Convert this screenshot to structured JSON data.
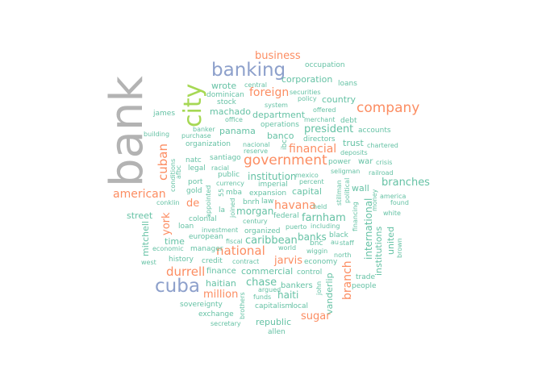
{
  "palette": {
    "teal": "#66c2a5",
    "orange": "#fc8d62",
    "blue": "#8da0cb",
    "green": "#a6d854",
    "gray": "#b3b3b3"
  },
  "words": {
    "bank": "bank",
    "city": "city",
    "banking": "banking",
    "cuba": "cuba",
    "government": "government",
    "company": "company",
    "cuban": "cuban",
    "national": "national",
    "durrell": "durrell",
    "american": "american",
    "business": "business",
    "foreign": "foreign",
    "financial": "financial",
    "president": "president",
    "havana": "havana",
    "million": "million",
    "branch": "branch",
    "sugar": "sugar",
    "chase": "chase",
    "branches": "branches",
    "caribbean": "caribbean",
    "banks": "banks",
    "york": "york",
    "farnham": "farnham",
    "jarvis": "jarvis",
    "international": "international",
    "morgan": "morgan",
    "institution": "institution",
    "haiti": "haiti",
    "corporation": "corporation",
    "street": "street",
    "de": "de",
    "republic": "republic",
    "commercial": "commercial",
    "trust": "trust",
    "capital": "capital",
    "banco": "banco",
    "department": "department",
    "wall": "wall",
    "country": "country",
    "wrote": "wrote",
    "machado": "machado",
    "panama": "panama",
    "time": "time",
    "bankers": "bankers",
    "haitian": "haitian",
    "mitchell": "mitchell",
    "united": "united",
    "institutions": "institutions",
    "vanderlip": "vanderlip",
    "occupation": "occupation",
    "loans": "loans",
    "central": "central",
    "dominican": "dominican",
    "stock": "stock",
    "system": "system",
    "securities": "securities",
    "policy": "policy",
    "offered": "offered",
    "james": "james",
    "office": "office",
    "merchant": "merchant",
    "debt": "debt",
    "operations": "operations",
    "accounts": "accounts",
    "building": "building",
    "banker": "banker",
    "purchase": "purchase",
    "organization": "organization",
    "nacional": "nacional",
    "reserve": "reserve",
    "ibc": "ibc",
    "directors": "directors",
    "chartered": "chartered",
    "deposits": "deposits",
    "santiago": "santiago",
    "power": "power",
    "war": "war",
    "crisis": "crisis",
    "afbc": "afbc",
    "conditions": "conditions",
    "natc": "natc",
    "legal": "legal",
    "racial": "racial",
    "seligman": "seligman",
    "railroad": "railroad",
    "public": "public",
    "mexico": "mexico",
    "port": "port",
    "currency": "currency",
    "imperial": "imperial",
    "percent": "percent",
    "stillman": "stillman",
    "political": "political",
    "money": "money",
    "america": "america",
    "gold": "gold",
    "appointed": "appointed",
    "s5": "55",
    "mba": "mba",
    "expansion": "expansion",
    "conklin": "conklin",
    "joined": "joined",
    "bnrh": "bnrh",
    "law": "law",
    "held": "held",
    "found": "found",
    "la": "la",
    "federal": "federal",
    "financing": "financing",
    "white": "white",
    "colonial": "colonial",
    "century": "century",
    "loan": "loan",
    "puerto": "puerto",
    "including": "including",
    "investment": "investment",
    "organized": "organized",
    "european": "european",
    "black": "black",
    "au": "au",
    "fiscal": "fiscal",
    "staff": "staff",
    "economic": "economic",
    "manager": "manager",
    "world": "world",
    "bnc": "bnc",
    "wiggin": "wiggin",
    "brown": "brown",
    "west": "west",
    "history": "history",
    "credit": "credit",
    "contract": "contract",
    "economy": "economy",
    "north": "north",
    "finance": "finance",
    "control": "control",
    "trade": "trade",
    "argued": "argued",
    "john": "john",
    "people": "people",
    "sovereignty": "sovereignty",
    "funds": "funds",
    "exchange": "exchange",
    "capitalism": "capitalism",
    "local": "local",
    "brothers": "brothers",
    "secretary": "secretary",
    "allen": "allen"
  }
}
